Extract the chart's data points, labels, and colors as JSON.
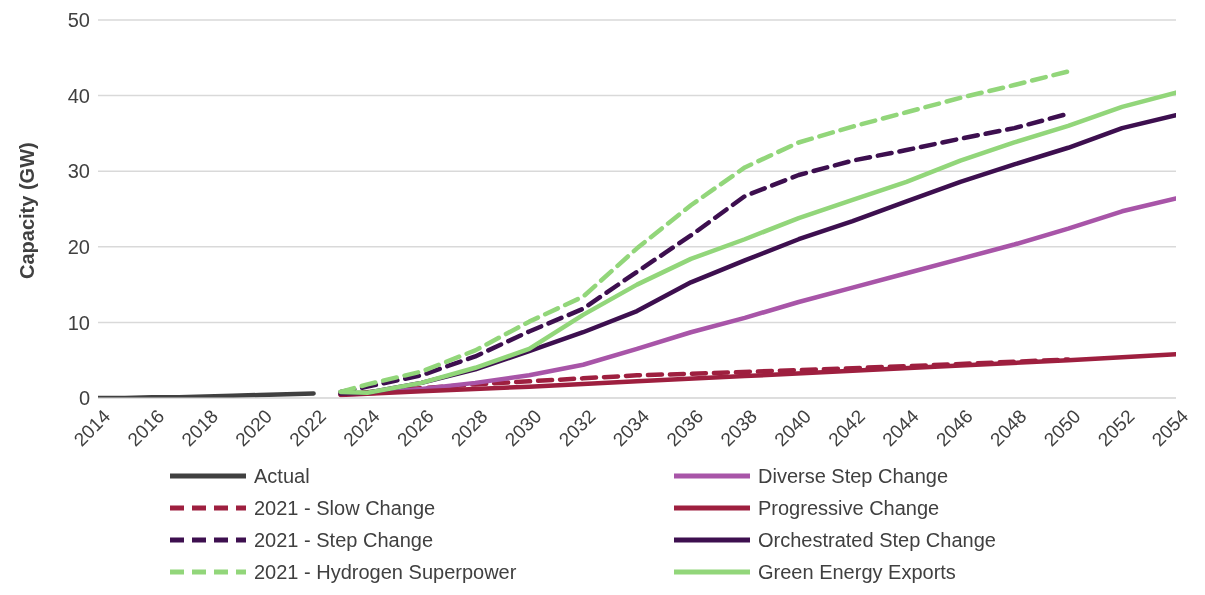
{
  "chart_data": {
    "type": "line",
    "ylabel": "Capacity (GW)",
    "xlim": [
      2014,
      2054
    ],
    "xticks": [
      2014,
      2016,
      2018,
      2020,
      2022,
      2024,
      2026,
      2028,
      2030,
      2032,
      2034,
      2036,
      2038,
      2040,
      2042,
      2044,
      2046,
      2048,
      2050,
      2052,
      2054
    ],
    "ylim": [
      0,
      50
    ],
    "yticks": [
      0,
      10,
      20,
      30,
      40,
      50
    ],
    "grid": "y",
    "legend": "bottom",
    "marker": "none",
    "series": [
      {
        "name": "Actual",
        "color": "#404040",
        "line_style": "solid",
        "x": [
          2014,
          2015,
          2016,
          2017,
          2018,
          2019,
          2020,
          2021,
          2022
        ],
        "values": [
          0,
          0,
          0.1,
          0.1,
          0.2,
          0.3,
          0.4,
          0.5,
          0.6
        ]
      },
      {
        "name": "2021 - Slow Change",
        "color": "#9e1f3f",
        "line_style": "dashed",
        "x": [
          2023,
          2026,
          2028,
          2030,
          2032,
          2034,
          2036,
          2040,
          2044,
          2048,
          2050
        ],
        "values": [
          0.5,
          1.3,
          1.8,
          2.2,
          2.6,
          3.0,
          3.2,
          3.7,
          4.2,
          4.8,
          5.1
        ]
      },
      {
        "name": "2021 - Step Change",
        "color": "#3d0f4f",
        "line_style": "dashed",
        "x": [
          2023,
          2024,
          2026,
          2028,
          2030,
          2032,
          2034,
          2036,
          2038,
          2040,
          2042,
          2044,
          2046,
          2048,
          2050
        ],
        "values": [
          0.8,
          1.5,
          3.0,
          5.5,
          8.8,
          11.8,
          16.7,
          21.5,
          26.7,
          29.5,
          31.4,
          32.8,
          34.3,
          35.7,
          37.6
        ]
      },
      {
        "name": "2021 - Hydrogen Superpower",
        "color": "#92d67a",
        "line_style": "dashed",
        "x": [
          2023,
          2024,
          2026,
          2028,
          2030,
          2032,
          2034,
          2036,
          2038,
          2040,
          2042,
          2044,
          2046,
          2048,
          2050
        ],
        "values": [
          0.8,
          1.8,
          3.5,
          6.3,
          10.1,
          13.4,
          19.8,
          25.5,
          30.5,
          33.8,
          35.9,
          37.8,
          39.7,
          41.4,
          43.2
        ]
      },
      {
        "name": "Diverse Step Change",
        "color": "#a855a8",
        "line_style": "solid",
        "x": [
          2023,
          2024,
          2026,
          2028,
          2030,
          2032,
          2034,
          2036,
          2038,
          2040,
          2042,
          2044,
          2046,
          2048,
          2050,
          2052,
          2054
        ],
        "values": [
          0.5,
          0.6,
          1.2,
          2.0,
          3.0,
          4.4,
          6.5,
          8.7,
          10.6,
          12.7,
          14.6,
          16.5,
          18.4,
          20.3,
          22.4,
          24.7,
          26.4
        ]
      },
      {
        "name": "Progressive Change",
        "color": "#9e1f3f",
        "line_style": "solid",
        "x": [
          2023,
          2026,
          2030,
          2034,
          2038,
          2042,
          2046,
          2050,
          2054
        ],
        "values": [
          0.4,
          0.9,
          1.5,
          2.2,
          2.9,
          3.6,
          4.3,
          5.0,
          5.8
        ]
      },
      {
        "name": "Orchestrated Step Change",
        "color": "#3d0f4f",
        "line_style": "solid",
        "x": [
          2023,
          2024,
          2026,
          2028,
          2030,
          2032,
          2034,
          2036,
          2038,
          2040,
          2042,
          2044,
          2046,
          2048,
          2050,
          2052,
          2054
        ],
        "values": [
          0.6,
          0.7,
          2.0,
          3.8,
          6.2,
          8.7,
          11.5,
          15.3,
          18.2,
          21.0,
          23.4,
          26.0,
          28.6,
          30.9,
          33.1,
          35.7,
          37.4
        ]
      },
      {
        "name": "Green Energy Exports",
        "color": "#92d67a",
        "line_style": "solid",
        "x": [
          2023,
          2024,
          2026,
          2028,
          2030,
          2032,
          2034,
          2036,
          2038,
          2040,
          2042,
          2044,
          2046,
          2048,
          2050,
          2052,
          2054
        ],
        "values": [
          0.8,
          0.7,
          2.0,
          4.0,
          6.5,
          11.0,
          15.0,
          18.4,
          21.0,
          23.8,
          26.2,
          28.6,
          31.4,
          33.8,
          36.0,
          38.5,
          40.4
        ]
      }
    ]
  }
}
